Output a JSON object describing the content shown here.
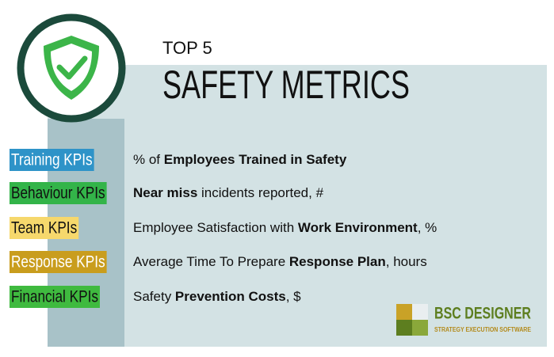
{
  "header": {
    "kicker": "TOP 5",
    "title": "SAFETY METRICS"
  },
  "kpis": [
    {
      "category": "Training KPIs",
      "bg": "#2e93c8",
      "fg": "#ffffff",
      "metric": [
        {
          "text": "% of ",
          "bold": false
        },
        {
          "text": "Employees Trained in Safety",
          "bold": true
        }
      ]
    },
    {
      "category": "Behaviour KPIs",
      "bg": "#33b449",
      "fg": "#111111",
      "metric": [
        {
          "text": "Near miss",
          "bold": true
        },
        {
          "text": " incidents reported, #",
          "bold": false
        }
      ]
    },
    {
      "category": "Team KPIs",
      "bg": "#f6d86c",
      "fg": "#111111",
      "metric": [
        {
          "text": "Employee Satisfaction with ",
          "bold": false
        },
        {
          "text": "Work Environment",
          "bold": true
        },
        {
          "text": ", %",
          "bold": false
        }
      ]
    },
    {
      "category": "Response KPIs",
      "bg": "#c99d1d",
      "fg": "#ffffff",
      "metric": [
        {
          "text": "Average Time To Prepare ",
          "bold": false
        },
        {
          "text": "Response Plan",
          "bold": true
        },
        {
          "text": ", hours",
          "bold": false
        }
      ]
    },
    {
      "category": "Financial KPIs",
      "bg": "#3fba3f",
      "fg": "#111111",
      "metric": [
        {
          "text": "Safety ",
          "bold": false
        },
        {
          "text": "Prevention Costs",
          "bold": true
        },
        {
          "text": ", $",
          "bold": false
        }
      ]
    }
  ],
  "logo": {
    "name": "BSC DESIGNER",
    "tagline": "STRATEGY EXECUTION SOFTWARE"
  }
}
